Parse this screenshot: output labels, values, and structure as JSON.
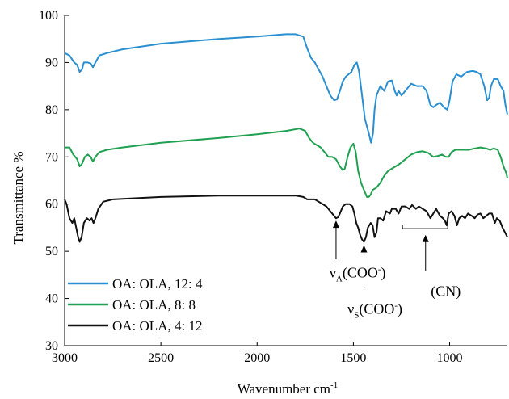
{
  "chart_data": {
    "type": "line",
    "xlabel": "Wavenumber cm",
    "xlabel_sup": "-1",
    "ylabel": "Transmittance %",
    "xlim": [
      3000,
      700
    ],
    "ylim": [
      30,
      100
    ],
    "x_reversed": true,
    "x_ticks": [
      3000,
      2500,
      2000,
      1500,
      1000
    ],
    "y_ticks": [
      30,
      40,
      50,
      60,
      70,
      80,
      90,
      100
    ],
    "grid": false,
    "legend_position": "bottom-left",
    "series": [
      {
        "name": "OA: OLA, 12: 4",
        "color": "#2a8fd0",
        "points": [
          [
            3000,
            92
          ],
          [
            2975,
            91.5
          ],
          [
            2950,
            90
          ],
          [
            2935,
            89.5
          ],
          [
            2922,
            88
          ],
          [
            2910,
            88.5
          ],
          [
            2900,
            90
          ],
          [
            2880,
            90
          ],
          [
            2865,
            89.8
          ],
          [
            2853,
            89
          ],
          [
            2840,
            90
          ],
          [
            2820,
            91.5
          ],
          [
            2780,
            92
          ],
          [
            2700,
            92.8
          ],
          [
            2500,
            94
          ],
          [
            2200,
            95
          ],
          [
            2000,
            95.5
          ],
          [
            1850,
            96
          ],
          [
            1800,
            96
          ],
          [
            1760,
            95.5
          ],
          [
            1740,
            93
          ],
          [
            1720,
            91
          ],
          [
            1700,
            90
          ],
          [
            1680,
            88.5
          ],
          [
            1660,
            87
          ],
          [
            1640,
            85
          ],
          [
            1620,
            83
          ],
          [
            1600,
            82
          ],
          [
            1585,
            82.2
          ],
          [
            1570,
            84
          ],
          [
            1555,
            86
          ],
          [
            1540,
            87
          ],
          [
            1525,
            87.5
          ],
          [
            1510,
            88
          ],
          [
            1495,
            89.5
          ],
          [
            1482,
            90
          ],
          [
            1470,
            88
          ],
          [
            1455,
            83
          ],
          [
            1440,
            78
          ],
          [
            1420,
            75
          ],
          [
            1408,
            73
          ],
          [
            1398,
            75
          ],
          [
            1390,
            80
          ],
          [
            1380,
            83
          ],
          [
            1360,
            85
          ],
          [
            1340,
            84
          ],
          [
            1320,
            86
          ],
          [
            1300,
            86.2
          ],
          [
            1285,
            84
          ],
          [
            1275,
            83
          ],
          [
            1265,
            84
          ],
          [
            1250,
            83
          ],
          [
            1230,
            84
          ],
          [
            1200,
            85.5
          ],
          [
            1170,
            85
          ],
          [
            1140,
            85
          ],
          [
            1120,
            84
          ],
          [
            1100,
            81
          ],
          [
            1085,
            80.5
          ],
          [
            1070,
            81
          ],
          [
            1050,
            81.5
          ],
          [
            1030,
            80.5
          ],
          [
            1012,
            80
          ],
          [
            1000,
            82
          ],
          [
            985,
            86
          ],
          [
            965,
            87.5
          ],
          [
            940,
            87
          ],
          [
            910,
            88
          ],
          [
            880,
            88.2
          ],
          [
            860,
            88
          ],
          [
            840,
            87.5
          ],
          [
            820,
            85
          ],
          [
            805,
            82
          ],
          [
            795,
            82.5
          ],
          [
            785,
            85
          ],
          [
            770,
            86.5
          ],
          [
            750,
            86.5
          ],
          [
            735,
            85
          ],
          [
            720,
            84
          ],
          [
            710,
            81
          ],
          [
            700,
            79
          ]
        ]
      },
      {
        "name": "OA: OLA, 8: 8",
        "color": "#1fa050",
        "points": [
          [
            3000,
            72
          ],
          [
            2975,
            72
          ],
          [
            2955,
            70.5
          ],
          [
            2935,
            69.5
          ],
          [
            2922,
            68
          ],
          [
            2910,
            68.5
          ],
          [
            2895,
            70
          ],
          [
            2880,
            70.5
          ],
          [
            2865,
            70
          ],
          [
            2853,
            69
          ],
          [
            2840,
            70
          ],
          [
            2820,
            71
          ],
          [
            2780,
            71.5
          ],
          [
            2700,
            72
          ],
          [
            2500,
            73
          ],
          [
            2200,
            74
          ],
          [
            2000,
            74.8
          ],
          [
            1850,
            75.5
          ],
          [
            1780,
            76
          ],
          [
            1750,
            75.5
          ],
          [
            1730,
            74
          ],
          [
            1710,
            73
          ],
          [
            1690,
            72.5
          ],
          [
            1670,
            72
          ],
          [
            1650,
            71
          ],
          [
            1630,
            70
          ],
          [
            1610,
            70
          ],
          [
            1590,
            69.5
          ],
          [
            1570,
            68
          ],
          [
            1555,
            67.2
          ],
          [
            1545,
            67.5
          ],
          [
            1530,
            70
          ],
          [
            1515,
            72
          ],
          [
            1500,
            72.8
          ],
          [
            1488,
            71
          ],
          [
            1475,
            67
          ],
          [
            1460,
            64.5
          ],
          [
            1445,
            63
          ],
          [
            1430,
            61.5
          ],
          [
            1420,
            61.5
          ],
          [
            1410,
            62
          ],
          [
            1400,
            63
          ],
          [
            1380,
            63.5
          ],
          [
            1360,
            64.5
          ],
          [
            1340,
            66
          ],
          [
            1320,
            67
          ],
          [
            1300,
            67.5
          ],
          [
            1260,
            68.5
          ],
          [
            1230,
            69.5
          ],
          [
            1200,
            70.5
          ],
          [
            1170,
            71
          ],
          [
            1140,
            71.2
          ],
          [
            1110,
            70.8
          ],
          [
            1085,
            70
          ],
          [
            1060,
            70.2
          ],
          [
            1040,
            70.5
          ],
          [
            1020,
            70
          ],
          [
            1005,
            70
          ],
          [
            990,
            71
          ],
          [
            970,
            71.5
          ],
          [
            940,
            71.5
          ],
          [
            900,
            71.5
          ],
          [
            870,
            71.8
          ],
          [
            840,
            72
          ],
          [
            810,
            71.8
          ],
          [
            790,
            71.5
          ],
          [
            770,
            71.8
          ],
          [
            750,
            71.5
          ],
          [
            735,
            70
          ],
          [
            720,
            68
          ],
          [
            705,
            66.5
          ],
          [
            700,
            65.5
          ]
        ]
      },
      {
        "name": "OA: OLA, 4: 12",
        "color": "#111111",
        "points": [
          [
            3000,
            61
          ],
          [
            2990,
            60
          ],
          [
            2975,
            57
          ],
          [
            2960,
            56
          ],
          [
            2950,
            57
          ],
          [
            2940,
            55
          ],
          [
            2930,
            53
          ],
          [
            2922,
            52
          ],
          [
            2912,
            53
          ],
          [
            2900,
            56
          ],
          [
            2885,
            57
          ],
          [
            2870,
            56.5
          ],
          [
            2860,
            57
          ],
          [
            2850,
            56
          ],
          [
            2840,
            57
          ],
          [
            2825,
            59
          ],
          [
            2800,
            60.5
          ],
          [
            2750,
            61
          ],
          [
            2500,
            61.5
          ],
          [
            2200,
            61.8
          ],
          [
            2000,
            61.8
          ],
          [
            1800,
            61.8
          ],
          [
            1760,
            61.5
          ],
          [
            1740,
            61
          ],
          [
            1720,
            61
          ],
          [
            1700,
            61
          ],
          [
            1680,
            60.5
          ],
          [
            1660,
            60
          ],
          [
            1640,
            59.5
          ],
          [
            1620,
            58.5
          ],
          [
            1600,
            57.5
          ],
          [
            1590,
            57
          ],
          [
            1580,
            57.2
          ],
          [
            1570,
            58
          ],
          [
            1555,
            59.5
          ],
          [
            1540,
            60
          ],
          [
            1520,
            60
          ],
          [
            1505,
            59.5
          ],
          [
            1495,
            58
          ],
          [
            1485,
            56
          ],
          [
            1475,
            55
          ],
          [
            1465,
            53.5
          ],
          [
            1455,
            52.5
          ],
          [
            1445,
            52
          ],
          [
            1435,
            53
          ],
          [
            1425,
            55
          ],
          [
            1410,
            56
          ],
          [
            1400,
            55.5
          ],
          [
            1390,
            53
          ],
          [
            1380,
            54
          ],
          [
            1372,
            57
          ],
          [
            1360,
            57
          ],
          [
            1345,
            56.5
          ],
          [
            1330,
            58.5
          ],
          [
            1310,
            58
          ],
          [
            1300,
            59
          ],
          [
            1280,
            59
          ],
          [
            1265,
            58
          ],
          [
            1250,
            59.5
          ],
          [
            1230,
            59.5
          ],
          [
            1210,
            59
          ],
          [
            1195,
            59.8
          ],
          [
            1175,
            59
          ],
          [
            1160,
            59.5
          ],
          [
            1140,
            59
          ],
          [
            1120,
            58.5
          ],
          [
            1100,
            57
          ],
          [
            1085,
            58
          ],
          [
            1070,
            59
          ],
          [
            1050,
            57.5
          ],
          [
            1035,
            57
          ],
          [
            1025,
            56.5
          ],
          [
            1015,
            55.5
          ],
          [
            1005,
            58
          ],
          [
            990,
            58.5
          ],
          [
            975,
            57.5
          ],
          [
            962,
            55.5
          ],
          [
            950,
            57
          ],
          [
            935,
            57.5
          ],
          [
            920,
            57
          ],
          [
            905,
            58
          ],
          [
            885,
            57.5
          ],
          [
            870,
            57
          ],
          [
            855,
            57.8
          ],
          [
            840,
            58
          ],
          [
            825,
            57
          ],
          [
            810,
            57.5
          ],
          [
            795,
            58
          ],
          [
            780,
            58
          ],
          [
            765,
            56
          ],
          [
            755,
            57
          ],
          [
            740,
            56.5
          ],
          [
            725,
            55
          ],
          [
            712,
            54
          ],
          [
            700,
            53
          ]
        ]
      }
    ],
    "annotations": [
      {
        "label_base": "ν",
        "label_sub": "A",
        "label_text": "(COO",
        "label_sup": "-",
        "label_end": ")",
        "text_x": 1478,
        "text_y": 44.5,
        "arrow_x": 1590,
        "arrow_from_y": 48.3,
        "arrow_to_y": 56.5
      },
      {
        "label_base": "ν",
        "label_sub": "S",
        "label_text": "(COO",
        "label_sup": "-",
        "label_end": ")",
        "text_x": 1388,
        "text_y": 36.8,
        "arrow_x": 1445,
        "arrow_from_y": 42.5,
        "arrow_to_y": 51.3
      },
      {
        "label": "(CN)",
        "text_x": 1020,
        "text_y": 40.5,
        "arrow_x": 1125,
        "arrow_from_y": 45.8,
        "arrow_to_y": 53.5,
        "bracket_from": 1245,
        "bracket_to": 1010,
        "bracket_y": 54.8
      }
    ]
  }
}
